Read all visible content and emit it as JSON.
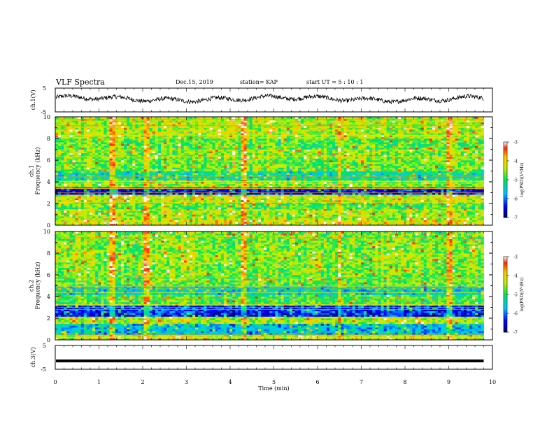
{
  "header": {
    "title": "VLF Spectra",
    "date": "Dec.15, 2019",
    "station": "station= KAP",
    "start": "start  UT =  5 : 10 : 1"
  },
  "chart_data": [
    {
      "type": "line",
      "panel": "ch1-waveform",
      "ylabel": "ch.1(V)",
      "ylim": [
        -5,
        5
      ],
      "yticks": [
        5,
        -5
      ],
      "xlim": [
        0,
        10
      ],
      "x_end_min": 9.8,
      "amplitude_range_v": [
        -1.5,
        2.5
      ]
    },
    {
      "type": "heatmap",
      "panel": "ch1-spectrogram",
      "ylabel": "ch.1\nFrequency (kHz)",
      "ylim": [
        0,
        10
      ],
      "yticks": [
        0,
        2,
        4,
        6,
        8,
        10
      ],
      "xlim": [
        0,
        10
      ],
      "x_end_min": 9.8,
      "colorbar": {
        "label": "log(PSD)(V²/Hz)",
        "range": [
          -7,
          -3
        ],
        "ticks": [
          -3,
          -4,
          -5,
          -6,
          -7
        ]
      },
      "bands_khz": [
        {
          "from": 0.0,
          "to": 0.5,
          "level": -4.2
        },
        {
          "from": 0.5,
          "to": 1.5,
          "level": -4.5
        },
        {
          "from": 1.5,
          "to": 2.2,
          "level": -4.8
        },
        {
          "from": 2.2,
          "to": 2.8,
          "level": -4.3
        },
        {
          "from": 2.8,
          "to": 3.5,
          "level": -6.4
        },
        {
          "from": 3.5,
          "to": 4.2,
          "level": -4.6
        },
        {
          "from": 4.2,
          "to": 5.0,
          "level": -5.3
        },
        {
          "from": 5.0,
          "to": 6.0,
          "level": -4.7
        },
        {
          "from": 6.0,
          "to": 7.0,
          "level": -4.6
        },
        {
          "from": 7.0,
          "to": 8.0,
          "level": -4.8
        },
        {
          "from": 8.0,
          "to": 10.0,
          "level": -4.4
        }
      ]
    },
    {
      "type": "heatmap",
      "panel": "ch2-spectrogram",
      "ylabel": "ch.2\nFrequency (kHz)",
      "ylim": [
        0,
        10
      ],
      "yticks": [
        0,
        2,
        4,
        6,
        8,
        10
      ],
      "xlim": [
        0,
        10
      ],
      "x_end_min": 9.8,
      "colorbar": {
        "label": "log(PSD)(V²/Hz)",
        "range": [
          -7,
          -3
        ],
        "ticks": [
          -3,
          -4,
          -5,
          -6,
          -7
        ]
      },
      "bands_khz": [
        {
          "from": 0.0,
          "to": 0.5,
          "level": -4.3
        },
        {
          "from": 0.5,
          "to": 1.5,
          "level": -5.6
        },
        {
          "from": 1.5,
          "to": 2.2,
          "level": -4.4
        },
        {
          "from": 2.2,
          "to": 3.2,
          "level": -6.3
        },
        {
          "from": 3.2,
          "to": 4.2,
          "level": -4.8
        },
        {
          "from": 4.2,
          "to": 5.0,
          "level": -5.4
        },
        {
          "from": 5.0,
          "to": 6.0,
          "level": -4.7
        },
        {
          "from": 6.0,
          "to": 7.0,
          "level": -4.6
        },
        {
          "from": 7.0,
          "to": 8.0,
          "level": -4.5
        },
        {
          "from": 8.0,
          "to": 10.0,
          "level": -4.6
        }
      ]
    },
    {
      "type": "line",
      "panel": "ch3-waveform",
      "ylabel": "ch.3(V)",
      "ylim": [
        -5,
        5
      ],
      "yticks": [
        5,
        -5
      ],
      "xlim": [
        0,
        10
      ],
      "x_end_min": 9.8,
      "value_v": -1.5,
      "xlabel": "Time (min)",
      "xticks": [
        0,
        1,
        2,
        3,
        4,
        5,
        6,
        7,
        8,
        9,
        10
      ]
    }
  ]
}
